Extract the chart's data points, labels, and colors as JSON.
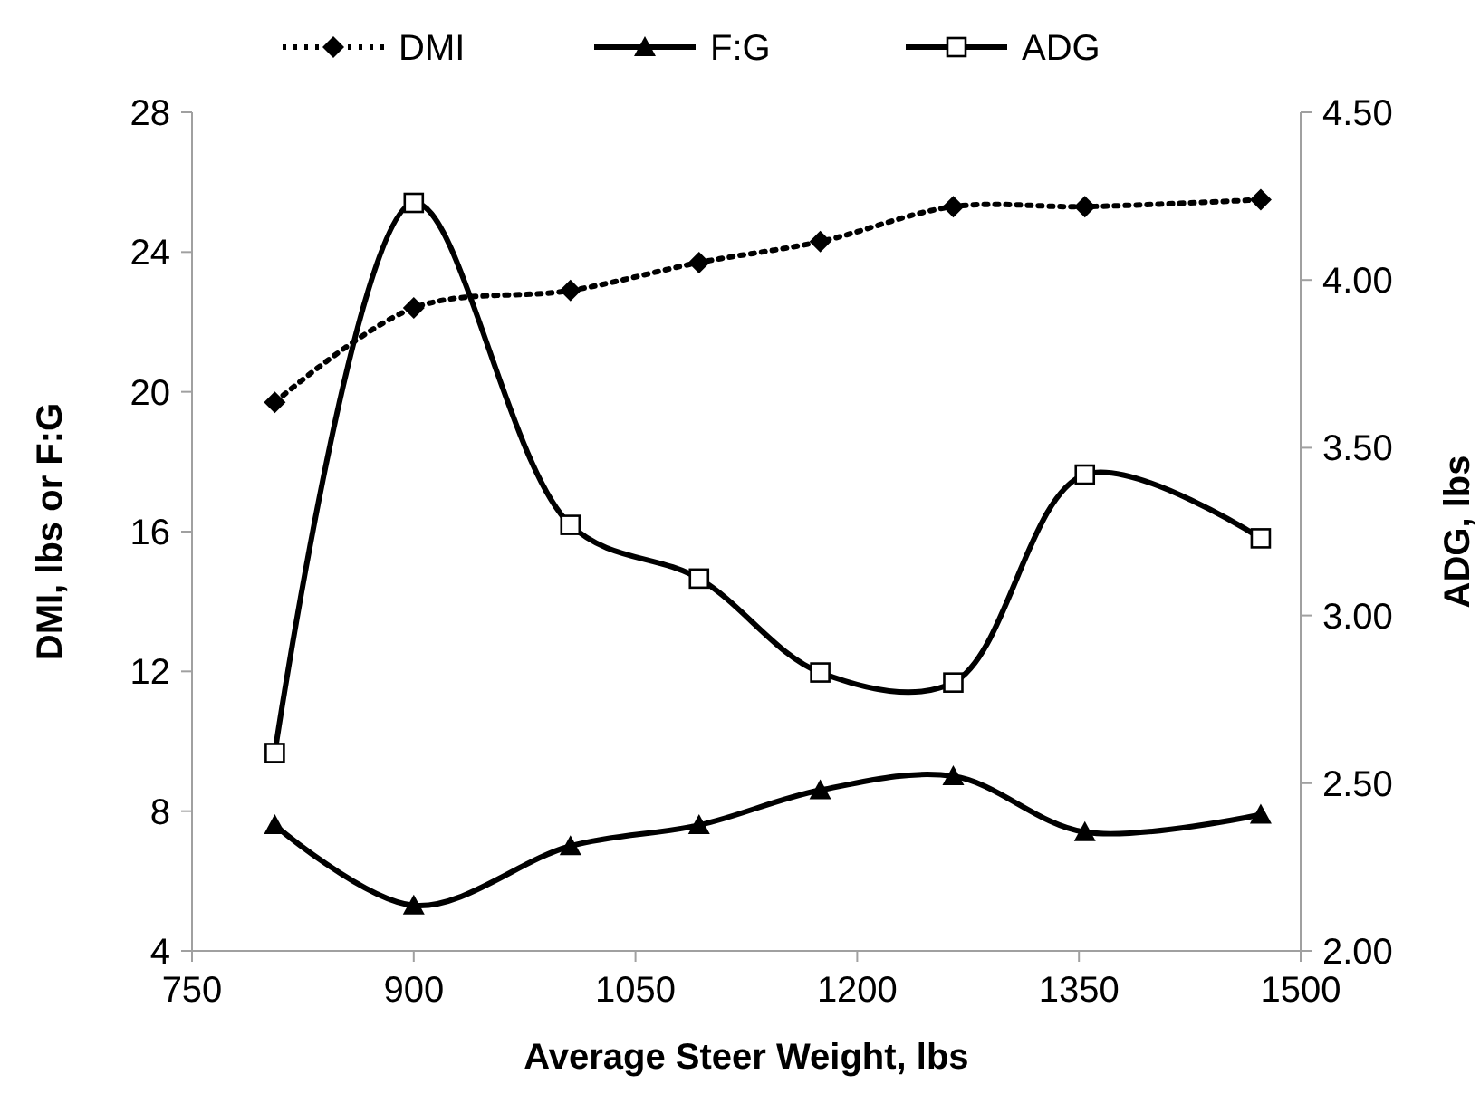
{
  "chart_data": {
    "type": "line",
    "xlabel": "Average Steer Weight, lbs",
    "ylabel": "DMI, lbs or F:G",
    "y2label": "ADG, lbs",
    "x": [
      806,
      900,
      1006,
      1093,
      1175,
      1265,
      1354,
      1473
    ],
    "xlim": [
      750,
      1500
    ],
    "xticks": [
      750,
      900,
      1050,
      1200,
      1350,
      1500
    ],
    "ylim": [
      4,
      28
    ],
    "yticks": [
      4,
      8,
      12,
      16,
      20,
      24,
      28
    ],
    "y2lim": [
      2,
      4.5
    ],
    "y2ticks": [
      {
        "value": 2,
        "label": "2.00"
      },
      {
        "value": 2.5,
        "label": "2.50"
      },
      {
        "value": 3,
        "label": "3.00"
      },
      {
        "value": 3.5,
        "label": "3.50"
      },
      {
        "value": 4,
        "label": "4.00"
      },
      {
        "value": 4.5,
        "label": "4.50"
      }
    ],
    "series": [
      {
        "name": "DMI",
        "color": "#000000",
        "marker": "diamond",
        "line_style": "dotted",
        "values": [
          19.7,
          22.4,
          22.9,
          23.7,
          24.3,
          25.3,
          25.3,
          25.5
        ]
      },
      {
        "name": "F:G",
        "color": "#000000",
        "marker": "triangle",
        "line_style": "solid",
        "values": [
          7.6,
          5.3,
          7.0,
          7.6,
          8.6,
          9.0,
          7.4,
          7.9
        ]
      },
      {
        "name": "ADG",
        "color": "#000000",
        "marker": "square",
        "line_style": "solid",
        "axis": "y2",
        "values": [
          2.59,
          4.23,
          3.27,
          3.11,
          2.83,
          2.8,
          3.42,
          3.23
        ]
      }
    ],
    "legend": "top",
    "grid": false
  }
}
